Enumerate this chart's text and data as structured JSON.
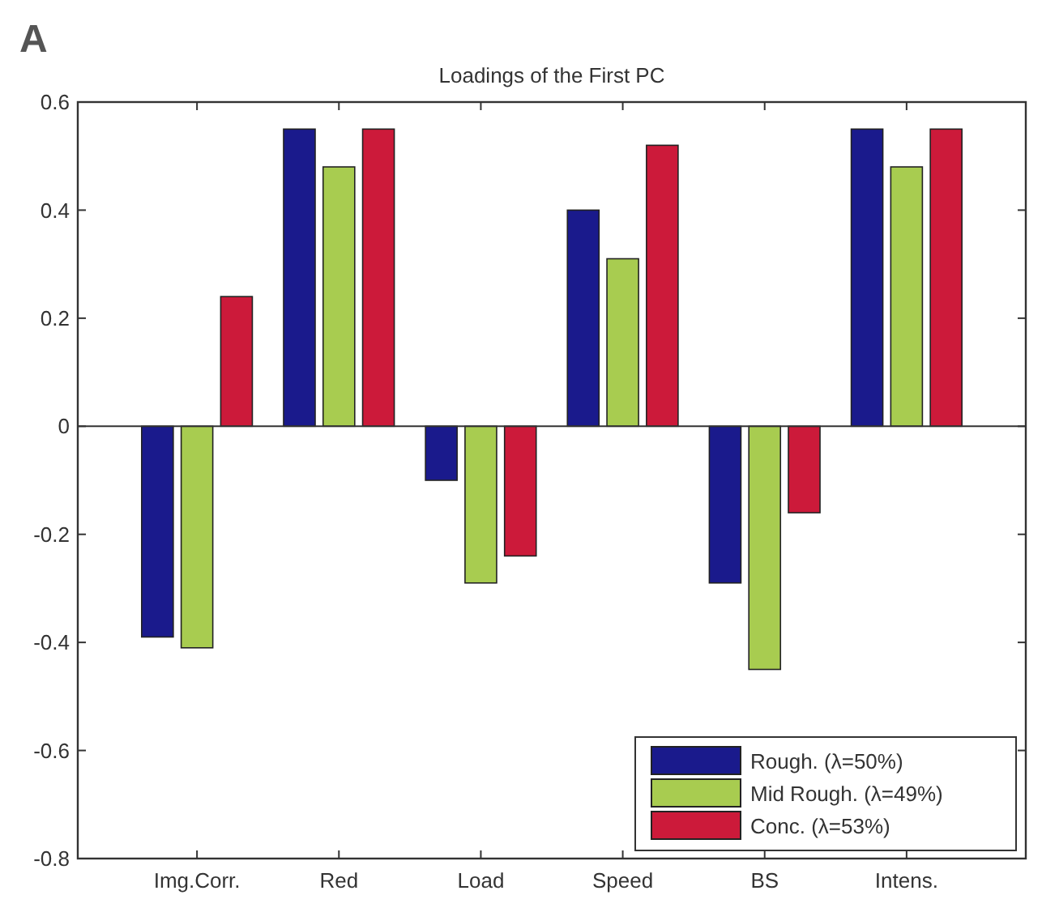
{
  "chart_data": {
    "type": "bar",
    "title": "Loadings of the First PC",
    "annotations": [
      "A"
    ],
    "categories": [
      "Img.Corr.",
      "Red",
      "Load",
      "Speed",
      "BS",
      "Intens."
    ],
    "series": [
      {
        "name": "Rough. (λ=50%)",
        "color": "#1a1a8c",
        "values": [
          -0.39,
          0.55,
          -0.1,
          0.4,
          -0.29,
          0.55
        ]
      },
      {
        "name": "Mid Rough. (λ=49%)",
        "color": "#a8cc50",
        "values": [
          -0.41,
          0.48,
          -0.29,
          0.31,
          -0.45,
          0.48
        ]
      },
      {
        "name": "Conc. (λ=53%)",
        "color": "#cc1a3a",
        "values": [
          0.24,
          0.55,
          -0.24,
          0.52,
          -0.16,
          0.55
        ]
      }
    ],
    "ylim": [
      -0.8,
      0.6
    ],
    "yticks": [
      -0.8,
      -0.6,
      -0.4,
      -0.2,
      0,
      0.2,
      0.4,
      0.6
    ],
    "legend": "bottom right"
  }
}
